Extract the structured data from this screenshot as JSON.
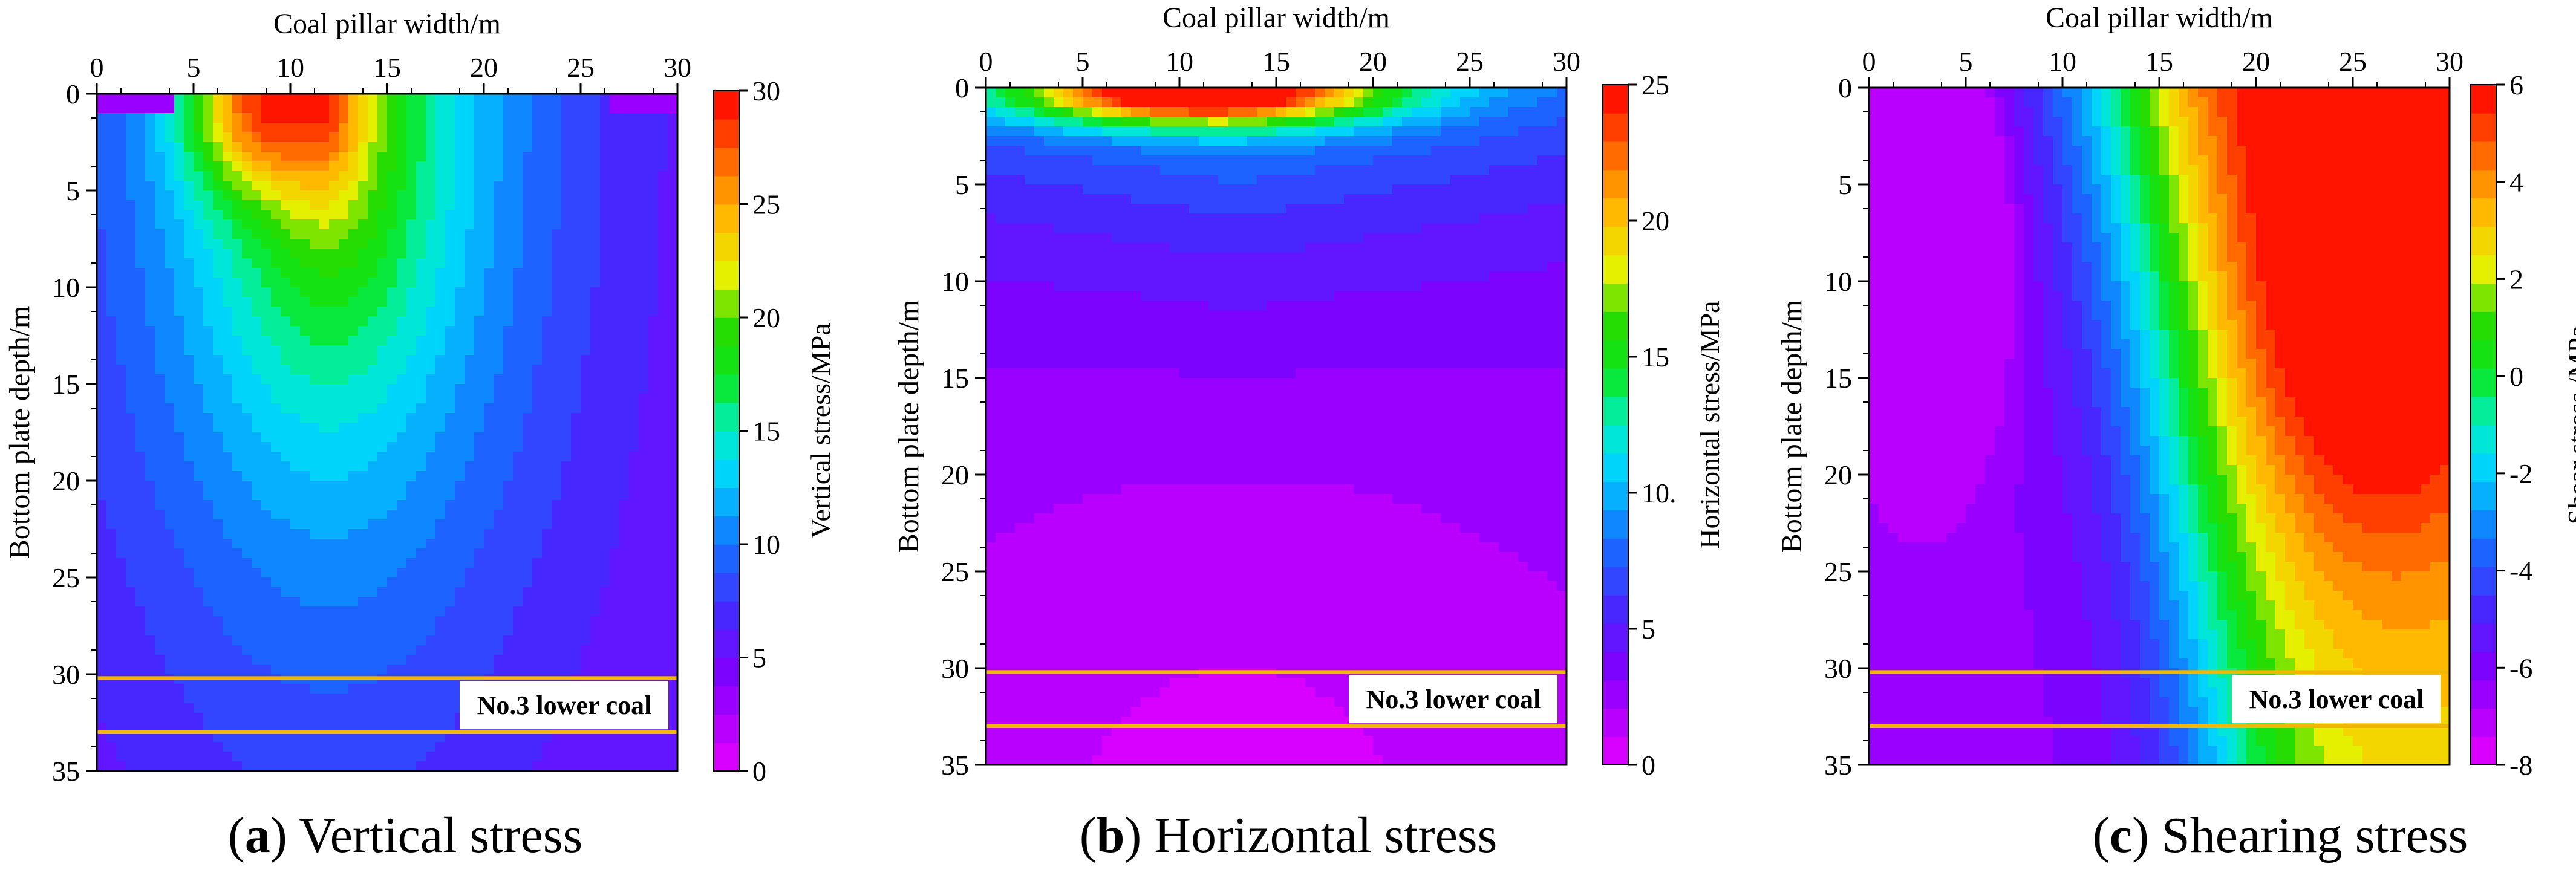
{
  "chart_data": [
    {
      "type": "heatmap",
      "caption": {
        "open": "(",
        "letter": "a",
        "close": ")",
        "title": " Vertical stress"
      },
      "xlabel": "Coal pillar width/m",
      "ylabel": "Bottom plate depth/m",
      "xlim": [
        0,
        30
      ],
      "ylim": [
        0,
        35
      ],
      "x_ticks": [
        "0",
        "5",
        "10",
        "15",
        "20",
        "25",
        "30"
      ],
      "y_ticks": [
        "0",
        "5",
        "10",
        "15",
        "20",
        "25",
        "30",
        "35"
      ],
      "colorbar": {
        "label": "Vertical stress/MPa",
        "min": 0,
        "max": 30,
        "ticks": [
          "0",
          "5",
          "10",
          "15",
          "20",
          "25",
          "30"
        ]
      },
      "layer": {
        "label": "No.3 lower coal",
        "top_depth": 30.2,
        "bottom_depth": 33.0
      },
      "field": "vertical",
      "peak": {
        "x": 8,
        "y": 0.5,
        "value": 30
      }
    },
    {
      "type": "heatmap",
      "caption": {
        "open": "(",
        "letter": "b",
        "close": ")",
        "title": " Horizontal stress"
      },
      "xlabel": "Coal pillar width/m",
      "ylabel": "Bottom plate depth/m",
      "xlim": [
        0,
        30
      ],
      "ylim": [
        0,
        35
      ],
      "x_ticks": [
        "0",
        "5",
        "10",
        "15",
        "20",
        "25",
        "30"
      ],
      "y_ticks": [
        "0",
        "5",
        "10",
        "15",
        "20",
        "25",
        "30",
        "35"
      ],
      "colorbar": {
        "label": "Horizontal stress/MPa",
        "min": 0,
        "max": 25,
        "ticks": [
          "0",
          "5",
          "10.",
          "15",
          "20",
          "25"
        ]
      },
      "layer": {
        "label": "No.3 lower coal",
        "top_depth": 30.2,
        "bottom_depth": 33.0
      },
      "field": "horizontal",
      "peak": {
        "x": 10,
        "y": 0.5,
        "value": 25
      }
    },
    {
      "type": "heatmap",
      "caption": {
        "open": "(",
        "letter": "c",
        "close": ")",
        "title": " Shearing stress"
      },
      "xlabel": "Coal pillar width/m",
      "ylabel": "Bottom plate depth/m",
      "xlim": [
        0,
        30
      ],
      "ylim": [
        0,
        35
      ],
      "x_ticks": [
        "0",
        "5",
        "10",
        "15",
        "20",
        "25",
        "30"
      ],
      "y_ticks": [
        "0",
        "5",
        "10",
        "15",
        "20",
        "25",
        "30",
        "35"
      ],
      "colorbar": {
        "label": "Shear stress /MPa",
        "min": -8,
        "max": 6,
        "ticks": [
          "-8",
          "-6",
          "-4",
          "-2",
          "0",
          "2",
          "4",
          "6"
        ]
      },
      "layer": {
        "label": "No.3 lower coal",
        "top_depth": 30.2,
        "bottom_depth": 33.0
      },
      "field": "shear",
      "peak": {
        "x": 26,
        "y": 10,
        "value": 6
      }
    }
  ]
}
